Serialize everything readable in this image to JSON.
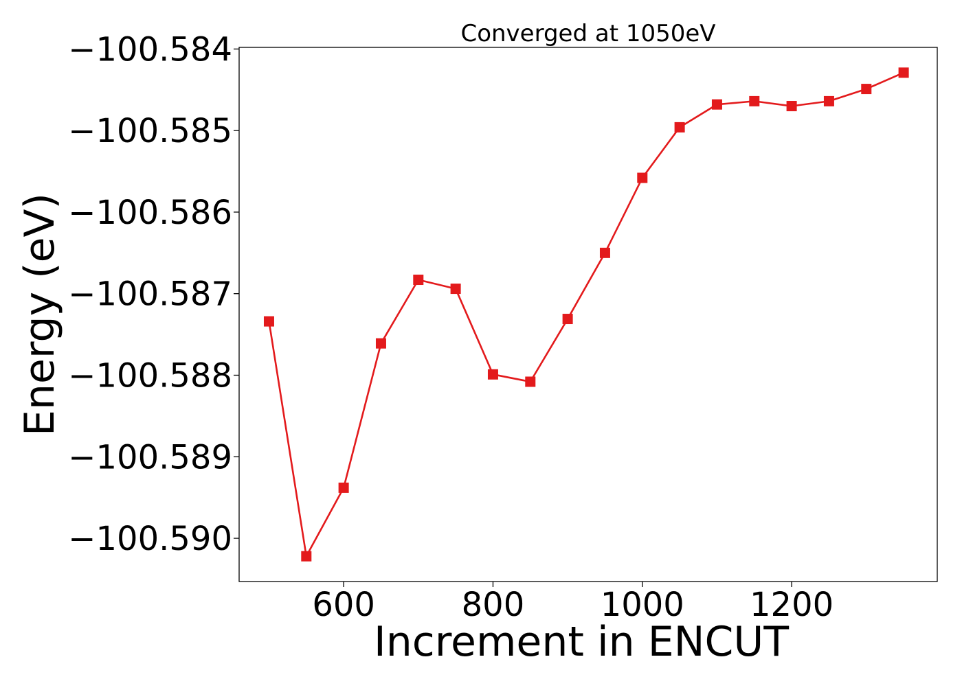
{
  "chart_data": {
    "type": "line",
    "title": "Converged at 1050eV",
    "xlabel": "Increment in ENCUT",
    "ylabel": "Energy (eV)",
    "xlim": [
      460,
      1395
    ],
    "ylim": [
      -100.59053,
      -100.58398
    ],
    "x_ticks": [
      600,
      800,
      1000,
      1200
    ],
    "x_tick_labels": [
      "600",
      "800",
      "1000",
      "1200"
    ],
    "y_ticks": [
      -100.584,
      -100.585,
      -100.586,
      -100.587,
      -100.588,
      -100.589,
      -100.59
    ],
    "y_tick_labels": [
      "−100.584",
      "−100.585",
      "−100.586",
      "−100.587",
      "−100.588",
      "−100.589",
      "−100.590"
    ],
    "grid": false,
    "series": [
      {
        "color": "#e31a1c",
        "marker": "square",
        "x": [
          500,
          550,
          600,
          650,
          700,
          750,
          800,
          850,
          900,
          950,
          1000,
          1050,
          1100,
          1150,
          1200,
          1250,
          1300,
          1350
        ],
        "y": [
          -100.58734,
          -100.59022,
          -100.58938,
          -100.58761,
          -100.58683,
          -100.58694,
          -100.58799,
          -100.58808,
          -100.58731,
          -100.5865,
          -100.58558,
          -100.58496,
          -100.58468,
          -100.58464,
          -100.5847,
          -100.58464,
          -100.58449,
          -100.58429
        ]
      }
    ]
  }
}
